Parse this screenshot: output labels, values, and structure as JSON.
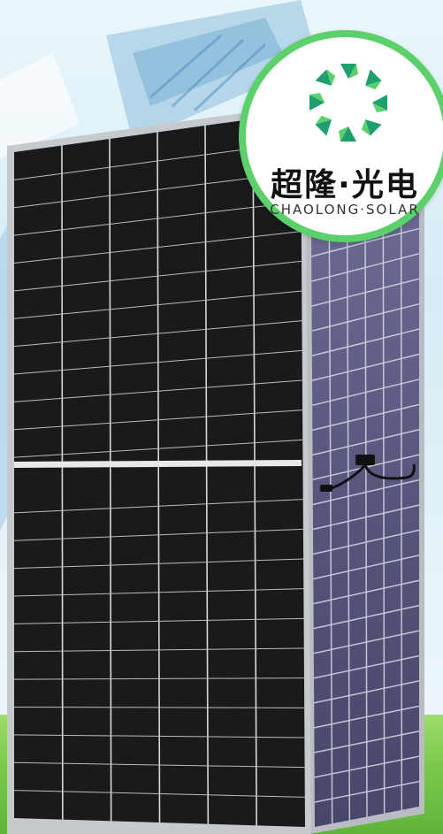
{
  "logo": {
    "name_cn": "超隆·光电",
    "name_en": "CHAOLONG·SOLAR",
    "colors": {
      "ring": "#5cd06b",
      "mark_dark": "#1f9e6e",
      "mark_light": "#5cd06b"
    }
  },
  "scene": {
    "colors": {
      "sky": "#d6ecf6",
      "grass": "#79c84a",
      "panel_frame": "#c9ccd0",
      "front_cells": "#1b1b1d",
      "back_glass": "#56557a"
    },
    "front_panel": {
      "columns": 6,
      "rows_per_half": 12
    },
    "back_panel": {
      "columns": 6,
      "rows": 24
    }
  }
}
